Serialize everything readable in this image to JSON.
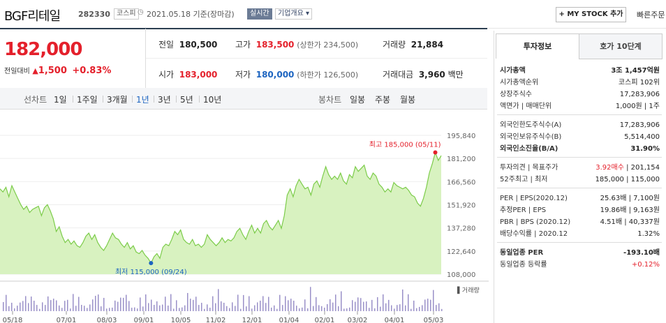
{
  "header": {
    "name": "BGF리테일",
    "code": "282330",
    "market_tag": "코스피",
    "date_text": "2021.05.18 기준(장마감)",
    "realtime_tag": "실시간",
    "company_info": "기업개요",
    "mystock_button": "+ MY STOCK 추가",
    "quick_order": "빠른주문"
  },
  "price": {
    "current": "182,000",
    "change_label": "전일대비",
    "change_value": "1,500",
    "change_pct": "+0.83%",
    "prev_label": "전일",
    "prev_value": "180,500",
    "high_label": "고가",
    "high_value": "183,500",
    "upper_limit": "(상한가 234,500)",
    "volume_label": "거래량",
    "volume_value": "21,884",
    "open_label": "시가",
    "open_value": "183,000",
    "low_label": "저가",
    "low_value": "180,000",
    "lower_limit": "(하한가 126,500)",
    "amount_label": "거래대금",
    "amount_value": "3,960",
    "amount_unit": "백만"
  },
  "period_bar": {
    "line_chart_label": "선차트",
    "line_periods": [
      "1일",
      "1주일",
      "3개월",
      "1년",
      "3년",
      "5년",
      "10년"
    ],
    "selected": "1년",
    "candle_label": "봉차트",
    "candle_periods": [
      "일봉",
      "주봉",
      "월봉"
    ]
  },
  "chart_data": {
    "type": "area",
    "y_ticks": [
      "195,840",
      "181,200",
      "166,560",
      "151,920",
      "137,280",
      "122,640",
      "108,000"
    ],
    "ylim": [
      108000,
      195840
    ],
    "x_ticks": [
      "05/18",
      "07/01",
      "08/03",
      "09/01",
      "10/05",
      "11/02",
      "12/01",
      "01/04",
      "02/01",
      "03/02",
      "04/01",
      "05/03"
    ],
    "high_annotation": "최고 185,000 (05/11)",
    "low_annotation": "최저 115,000 (09/24)",
    "volume_label": "거래량",
    "values": [
      162000,
      160000,
      163000,
      157000,
      164000,
      160000,
      156000,
      152000,
      149000,
      151000,
      147000,
      149000,
      150000,
      151000,
      145000,
      150000,
      152000,
      148000,
      143000,
      135000,
      138000,
      132000,
      128000,
      130000,
      127000,
      129000,
      126000,
      125000,
      128000,
      132000,
      134000,
      130000,
      133000,
      128000,
      125000,
      123000,
      126000,
      130000,
      134000,
      131000,
      130000,
      127000,
      125000,
      128000,
      124000,
      126000,
      122000,
      121000,
      123000,
      120000,
      118000,
      115000,
      119000,
      121000,
      118000,
      125000,
      127000,
      126000,
      130000,
      135000,
      133000,
      136000,
      130000,
      128000,
      127000,
      130000,
      126000,
      127000,
      125000,
      127000,
      133000,
      130000,
      128000,
      126000,
      128000,
      131000,
      128000,
      130000,
      129000,
      131000,
      135000,
      137000,
      133000,
      130000,
      135000,
      139000,
      134000,
      137000,
      134000,
      140000,
      142000,
      138000,
      136000,
      139000,
      142000,
      137000,
      145000,
      158000,
      162000,
      157000,
      164000,
      168000,
      165000,
      162000,
      163000,
      158000,
      165000,
      167000,
      163000,
      170000,
      176000,
      171000,
      168000,
      170000,
      168000,
      172000,
      167000,
      165000,
      171000,
      169000,
      176000,
      173000,
      175000,
      177000,
      170000,
      168000,
      172000,
      170000,
      165000,
      163000,
      160000,
      162000,
      160000,
      166000,
      164000,
      163000,
      162000,
      163000,
      161000,
      158000,
      157000,
      153000,
      151000,
      156000,
      163000,
      172000,
      178000,
      185000,
      180000,
      183000
    ]
  },
  "right_panel": {
    "tabs": [
      "투자정보",
      "호가 10단계"
    ],
    "rows1": [
      {
        "l": "시가총액",
        "r": "3조 1,457억원"
      },
      {
        "l": "시가총액순위",
        "r": "코스피 102위"
      },
      {
        "l": "상장주식수",
        "r": "17,283,906"
      },
      {
        "l": "액면가 | 매매단위",
        "r": "1,000원 | 1주"
      }
    ],
    "rows2": [
      {
        "l": "외국인한도주식수(A)",
        "r": "17,283,906"
      },
      {
        "l": "외국인보유주식수(B)",
        "r": "5,514,400"
      },
      {
        "l": "외국인소진율(B/A)",
        "r": "31.90%"
      }
    ],
    "rows3": [
      {
        "l": "투자의견 | 목표주가",
        "r1": "3.92매수",
        "r2": "201,154"
      },
      {
        "l": "52주최고 | 최저",
        "r": "185,000 | 115,000"
      }
    ],
    "rows4": [
      {
        "l": "PER | EPS(2020.12)",
        "r": "25.63배 | 7,100원"
      },
      {
        "l": "추정PER | EPS",
        "r": "19.86배 | 9,163원"
      },
      {
        "l": "PBR | BPS (2020.12)",
        "r": "4.51배 | 40,337원"
      },
      {
        "l": "배당수익률 | 2020.12",
        "r": "1.32%"
      }
    ],
    "rows5": [
      {
        "l": "동일업종 PER",
        "r": "-193.10배"
      },
      {
        "l": "동일업종 등락률",
        "r": "+0.12%"
      }
    ],
    "colors": {
      "up": "#e4202b",
      "down": "#1c64c0",
      "accent": "#2c3e50"
    }
  }
}
